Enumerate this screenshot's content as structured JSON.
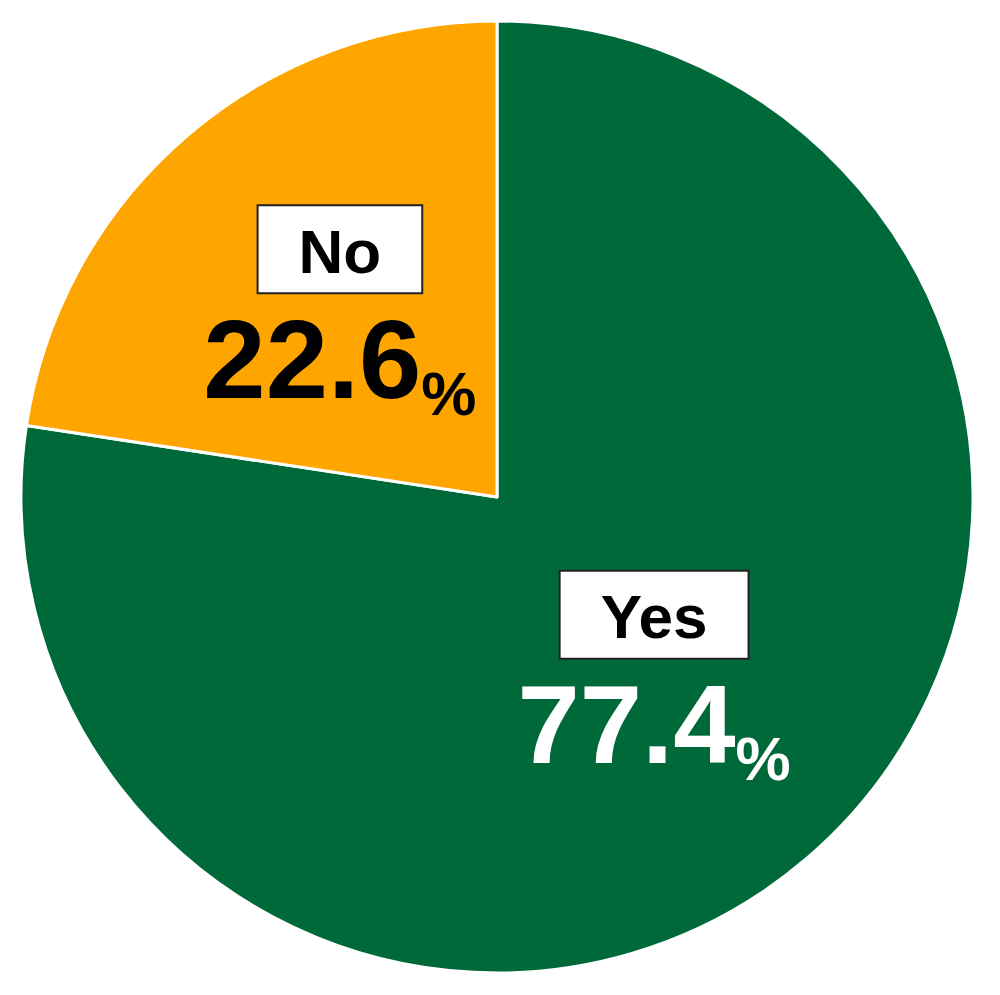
{
  "chart_data": {
    "type": "pie",
    "categories": [
      "Yes",
      "No"
    ],
    "values": [
      77.4,
      22.6
    ],
    "value_labels": [
      "77.4%",
      "22.6%"
    ],
    "colors": [
      "#00693A",
      "#FFA500"
    ],
    "data_labels": true
  }
}
